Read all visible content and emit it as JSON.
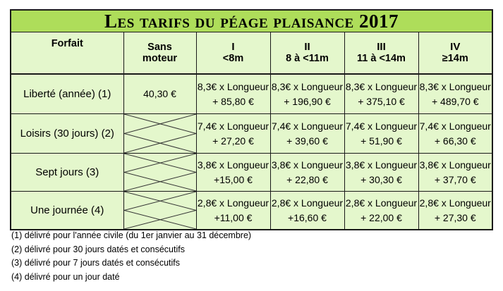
{
  "title": "Les tarifs du péage plaisance 2017",
  "columns": {
    "forfait": "Forfait",
    "sans_moteur": [
      "Sans",
      "moteur"
    ],
    "cat1": [
      "I",
      "<8m"
    ],
    "cat2": [
      "II",
      "8 à <11m"
    ],
    "cat3": [
      "III",
      "11 à <14m"
    ],
    "cat4": [
      "IV",
      "≥14m"
    ]
  },
  "rows": [
    {
      "label": "Liberté (année) (1)",
      "sans_moteur": "40,30 €",
      "cells": [
        [
          "8,3€ x Longueur",
          "+ 85,80 €"
        ],
        [
          "8,3€ x Longueur",
          "+ 196,90 €"
        ],
        [
          "8,3€ x Longueur",
          "+ 375,10 €"
        ],
        [
          "8,3€ x Longueur",
          "+ 489,70 €"
        ]
      ]
    },
    {
      "label": "Loisirs (30 jours) (2)",
      "sans_moteur": "",
      "cells": [
        [
          "7,4€ x Longueur",
          "+ 27,20 €"
        ],
        [
          "7,4€ x Longueur",
          "+ 39,60 €"
        ],
        [
          "7,4€ x Longueur",
          "+ 51,90 €"
        ],
        [
          "7,4€ x Longueur",
          "+ 66,30 €"
        ]
      ]
    },
    {
      "label": "Sept jours (3)",
      "sans_moteur": "",
      "cells": [
        [
          "3,8€ x Longueur",
          "+15,00 €"
        ],
        [
          "3,8€ x Longueur",
          "+ 22,80 €"
        ],
        [
          "3,8€ x Longueur",
          "+ 30,30 €"
        ],
        [
          "3,8€ x Longueur",
          "+ 37,70 €"
        ]
      ]
    },
    {
      "label": "Une journée (4)",
      "sans_moteur": "",
      "cells": [
        [
          "2,8€ x Longueur",
          "+11,00 €"
        ],
        [
          "2,8€ x Longueur",
          "+16,60 €"
        ],
        [
          "2,8€ x Longueur",
          "+ 22,00 €"
        ],
        [
          "2,8€ x Longueur",
          "+ 27,30 €"
        ]
      ]
    }
  ],
  "notes": [
    "(1) délivré pour l'année civile (du 1er janvier au 31 décembre)",
    "(2) délivré pour 30 jours datés et consécutifs",
    "(3) délivré pour 7 jours datés et consécutifs",
    "(4) délivré pour un jour daté"
  ],
  "colors": {
    "title_bg": "#aedd5a",
    "cell_bg": "#e4f7cc",
    "border": "#1a1a1a"
  }
}
